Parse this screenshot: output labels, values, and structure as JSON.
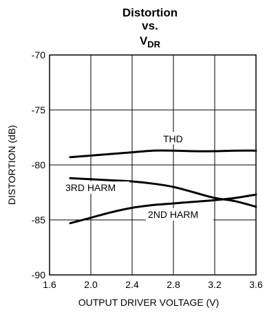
{
  "chart_data": {
    "type": "line",
    "title": {
      "line1": "Distortion",
      "line2": "vs.",
      "line3_main": "V",
      "line3_sub": "DR"
    },
    "xlabel": "OUTPUT DRIVER VOLTAGE (V)",
    "ylabel": "DISTORTION (dB)",
    "xlim": [
      1.6,
      3.6
    ],
    "ylim": [
      -90,
      -70
    ],
    "x_ticks": [
      1.6,
      2.0,
      2.4,
      2.8,
      3.2,
      3.6
    ],
    "x_tick_labels": [
      "1.6",
      "2.0",
      "2.4",
      "2.8",
      "3.2",
      "3.6"
    ],
    "y_ticks": [
      -90,
      -85,
      -80,
      -75,
      -70
    ],
    "y_tick_labels": [
      "-90",
      "-85",
      "-80",
      "-75",
      "-70"
    ],
    "grid": true,
    "series": [
      {
        "name": "THD",
        "x": [
          1.8,
          2.0,
          2.2,
          2.4,
          2.6,
          2.8,
          3.0,
          3.2,
          3.4,
          3.6
        ],
        "y": [
          -79.3,
          -79.15,
          -79.0,
          -78.85,
          -78.7,
          -78.7,
          -78.75,
          -78.75,
          -78.7,
          -78.7
        ]
      },
      {
        "name": "3RD HARM",
        "x": [
          1.8,
          2.0,
          2.2,
          2.4,
          2.6,
          2.8,
          3.0,
          3.2,
          3.4,
          3.6
        ],
        "y": [
          -81.2,
          -81.3,
          -81.4,
          -81.5,
          -81.7,
          -82.0,
          -82.5,
          -83.0,
          -83.3,
          -83.8
        ]
      },
      {
        "name": "2ND HARM",
        "x": [
          1.8,
          2.0,
          2.2,
          2.4,
          2.6,
          2.8,
          3.0,
          3.2,
          3.4,
          3.6
        ],
        "y": [
          -85.3,
          -84.8,
          -84.3,
          -83.9,
          -83.65,
          -83.5,
          -83.35,
          -83.2,
          -83.0,
          -82.7
        ]
      }
    ],
    "annotations": [
      "THD",
      "3RD HARM",
      "2ND HARM"
    ]
  },
  "colors": {
    "line": "#000000",
    "grid": "#000000",
    "background": "#ffffff"
  }
}
